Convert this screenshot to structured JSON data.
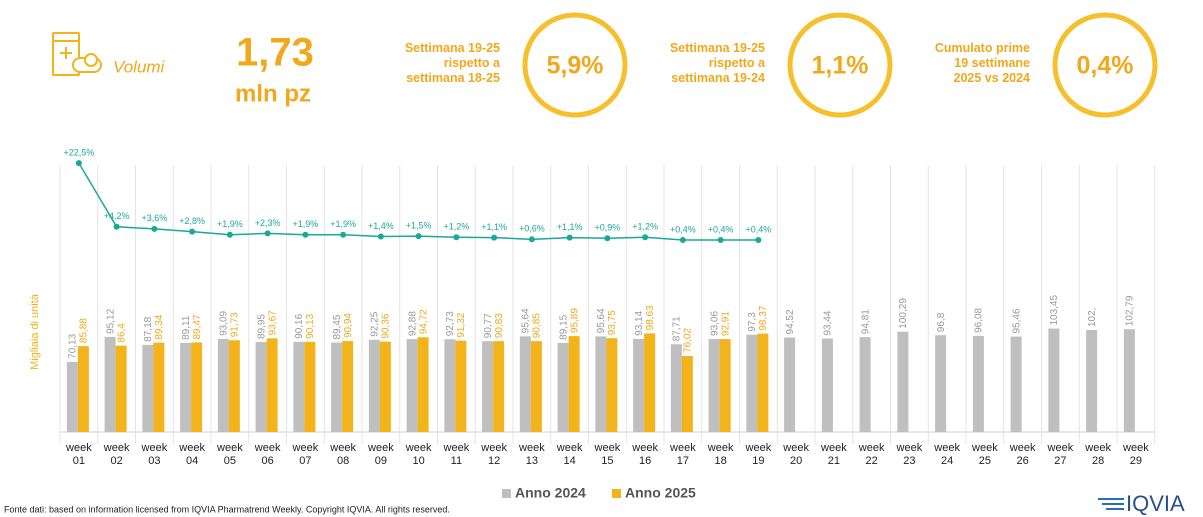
{
  "header": {
    "title": "Volumi",
    "total": "1,73",
    "unit": "mln pz",
    "kpis": [
      {
        "label": [
          "Settimana 19-25",
          "rispetto a",
          "settimana 18-25"
        ],
        "value": "5,9%"
      },
      {
        "label": [
          "Settimana 19-25",
          "rispetto a",
          "settimana 19-24"
        ],
        "value": "1,1%"
      },
      {
        "label": [
          "Cumulato prime",
          "19 settimane",
          "2025 vs 2024"
        ],
        "value": "0,4%"
      }
    ]
  },
  "chart_data": {
    "type": "bar",
    "ylabel": "Migliaia di unità",
    "categories": [
      "week 01",
      "week 02",
      "week 03",
      "week 04",
      "week 05",
      "week 06",
      "week 07",
      "week 08",
      "week 09",
      "week 10",
      "week 11",
      "week 12",
      "week 13",
      "week 14",
      "week 15",
      "week 16",
      "week 17",
      "week 18",
      "week 19",
      "week 20",
      "week 21",
      "week 22",
      "week 23",
      "week 24",
      "week 25",
      "week 26",
      "week 27",
      "week 28",
      "week 29"
    ],
    "ylim": [
      0,
      260
    ],
    "y2lim": [
      0,
      25
    ],
    "series": [
      {
        "name": "Anno 2024",
        "color": "#bfbfbf",
        "values": [
          70.13,
          95.12,
          87.18,
          89.11,
          93.09,
          89.95,
          90.16,
          89.45,
          92.25,
          92.88,
          92.73,
          90.77,
          95.64,
          89.15,
          95.64,
          93.14,
          87.71,
          93.06,
          97.3,
          94.52,
          93.44,
          94.81,
          100.29,
          96.8,
          96.08,
          95.46,
          103.45,
          102,
          102.79
        ],
        "value_labels": [
          "70,13",
          "95,12",
          "87,18",
          "89,11",
          "93,09",
          "89,95",
          "90,16",
          "89,45",
          "92,25",
          "92,88",
          "92,73",
          "90,77",
          "95,64",
          "89,15",
          "95,64",
          "93,14",
          "87,71",
          "93,06",
          "97,3",
          "94,52",
          "93,44",
          "94,81",
          "100,29",
          "96,8",
          "96,08",
          "95,46",
          "103,45",
          "102,",
          "102,79"
        ]
      },
      {
        "name": "Anno 2025",
        "color": "#f2b31b",
        "values": [
          85.88,
          86.4,
          89.34,
          89.47,
          91.73,
          93.67,
          90.13,
          90.94,
          90.36,
          94.72,
          91.32,
          90.83,
          90.85,
          95.89,
          93.75,
          98.63,
          76.02,
          92.91,
          98.37,
          null,
          null,
          null,
          null,
          null,
          null,
          null,
          null,
          null,
          null
        ],
        "value_labels": [
          "85,88",
          "86,4",
          "89,34",
          "89,47",
          "91,73",
          "93,67",
          "90,13",
          "90,94",
          "90,36",
          "94,72",
          "91,32",
          "90,83",
          "90,85",
          "95,89",
          "93,75",
          "98,63",
          "76,02",
          "92,91",
          "98,37",
          null,
          null,
          null,
          null,
          null,
          null,
          null,
          null,
          null,
          null
        ]
      },
      {
        "type": "line",
        "axis": "y2",
        "color": "#1aa89c",
        "values": [
          22.5,
          4.2,
          3.6,
          2.8,
          1.9,
          2.3,
          1.9,
          1.9,
          1.4,
          1.5,
          1.2,
          1.1,
          0.6,
          1.1,
          0.9,
          1.2,
          0.4,
          0.4,
          0.4,
          null,
          null,
          null,
          null,
          null,
          null,
          null,
          null,
          null,
          null
        ],
        "value_labels": [
          "+22,5%",
          "+4,2%",
          "+3,6%",
          "+2,8%",
          "+1,9%",
          "+2,3%",
          "+1,9%",
          "+1,9%",
          "+1,4%",
          "+1,5%",
          "+1,2%",
          "+1,1%",
          "+0,6%",
          "+1,1%",
          "+0,9%",
          "+1,2%",
          "+0,4%",
          "+0,4%",
          "+0,4%",
          null,
          null,
          null,
          null,
          null,
          null,
          null,
          null,
          null,
          null
        ]
      }
    ],
    "legend": "bottom"
  },
  "footer": {
    "source": "Fonte dati: based on information licensed from IQVIA Pharmatrend Weekly. Copyright IQVIA. All rights reserved.",
    "logo": "IQVIA"
  }
}
